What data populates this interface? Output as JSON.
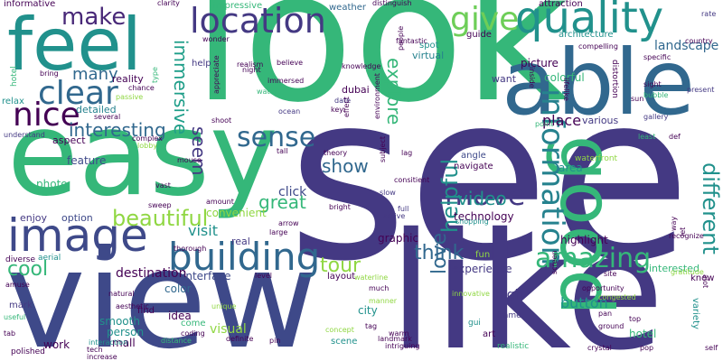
{
  "colors": {
    "background": "#ffffff",
    "palette": [
      "#440154",
      "#443983",
      "#31688e",
      "#21918c",
      "#35b779",
      "#90d743",
      "#fde725",
      "#482878",
      "#26828e",
      "#3e4989",
      "#1f9e89",
      "#6ece58"
    ]
  },
  "words": [
    {
      "text": "see",
      "color": "#443983"
    },
    {
      "text": "look",
      "color": "#35b779"
    },
    {
      "text": "like",
      "color": "#443983"
    },
    {
      "text": "view",
      "color": "#3e4989"
    },
    {
      "text": "easy",
      "color": "#35b779"
    },
    {
      "text": "able",
      "color": "#31688e"
    },
    {
      "text": "feel",
      "color": "#21918c"
    },
    {
      "text": "good",
      "color": "#35b779"
    },
    {
      "text": "quality",
      "color": "#21918c"
    },
    {
      "text": "image",
      "color": "#3e4989"
    },
    {
      "text": "location",
      "color": "#443983"
    },
    {
      "text": "building",
      "color": "#31688e"
    },
    {
      "text": "information",
      "color": "#26828e"
    },
    {
      "text": "nice",
      "color": "#440154"
    },
    {
      "text": "give",
      "color": "#6ece58"
    },
    {
      "text": "clear",
      "color": "#31688e"
    },
    {
      "text": "make",
      "color": "#482878"
    },
    {
      "text": "sense",
      "color": "#31688e"
    },
    {
      "text": "move",
      "color": "#443983"
    },
    {
      "text": "beautiful",
      "color": "#90d743"
    },
    {
      "text": "amazing",
      "color": "#35b779"
    },
    {
      "text": "different",
      "color": "#21918c"
    },
    {
      "text": "show",
      "color": "#31688e"
    },
    {
      "text": "explore",
      "color": "#35b779"
    },
    {
      "text": "immersive",
      "color": "#1f9e89"
    },
    {
      "text": "helpful",
      "color": "#21918c"
    },
    {
      "text": "video",
      "color": "#21918c"
    },
    {
      "text": "interesting",
      "color": "#31688e"
    },
    {
      "text": "great",
      "color": "#35b779"
    },
    {
      "text": "tour",
      "color": "#90d743"
    },
    {
      "text": "cool",
      "color": "#35b779"
    },
    {
      "text": "visit",
      "color": "#21918c"
    },
    {
      "text": "think",
      "color": "#31688e"
    },
    {
      "text": "seem",
      "color": "#443983"
    },
    {
      "text": "love",
      "color": "#31688e"
    },
    {
      "text": "many",
      "color": "#31688e"
    },
    {
      "text": "click",
      "color": "#3e4989"
    },
    {
      "text": "destination",
      "color": "#440154"
    },
    {
      "text": "experience",
      "color": "#443983"
    },
    {
      "text": "button",
      "color": "#21918c"
    },
    {
      "text": "place",
      "color": "#440154"
    },
    {
      "text": "picture",
      "color": "#440154"
    },
    {
      "text": "landscape",
      "color": "#31688e"
    },
    {
      "text": "colorful",
      "color": "#35b779"
    },
    {
      "text": "area",
      "color": "#21918c"
    },
    {
      "text": "highlight",
      "color": "#440154"
    },
    {
      "text": "technology",
      "color": "#440154"
    },
    {
      "text": "interface",
      "color": "#3e4989"
    },
    {
      "text": "smooth",
      "color": "#21918c"
    },
    {
      "text": "person",
      "color": "#21918c"
    },
    {
      "text": "visual",
      "color": "#90d743"
    },
    {
      "text": "idea",
      "color": "#440154"
    },
    {
      "text": "color",
      "color": "#31688e"
    },
    {
      "text": "graphic",
      "color": "#440154"
    },
    {
      "text": "high",
      "color": "#443983"
    },
    {
      "text": "city",
      "color": "#21918c"
    },
    {
      "text": "work",
      "color": "#440154"
    },
    {
      "text": "mall",
      "color": "#440154"
    },
    {
      "text": "interested",
      "color": "#35b779"
    },
    {
      "text": "hotel",
      "color": "#35b779"
    },
    {
      "text": "variety",
      "color": "#21918c"
    },
    {
      "text": "real",
      "color": "#443983"
    },
    {
      "text": "photo",
      "color": "#35b779"
    },
    {
      "text": "feature",
      "color": "#3e4989"
    },
    {
      "text": "enjoy",
      "color": "#443983"
    },
    {
      "text": "option",
      "color": "#3e4989"
    },
    {
      "text": "dubai",
      "color": "#440154"
    },
    {
      "text": "reality",
      "color": "#440154"
    },
    {
      "text": "detailed",
      "color": "#26828e"
    },
    {
      "text": "aspect",
      "color": "#440154"
    },
    {
      "text": "navigate",
      "color": "#440154"
    },
    {
      "text": "angle",
      "color": "#3e4989"
    },
    {
      "text": "convenient",
      "color": "#90d743"
    },
    {
      "text": "various",
      "color": "#443983"
    },
    {
      "text": "guide",
      "color": "#440154"
    },
    {
      "text": "spot",
      "color": "#21918c"
    },
    {
      "text": "virtual",
      "color": "#26828e"
    },
    {
      "text": "impressive",
      "color": "#35b779"
    },
    {
      "text": "want",
      "color": "#443983"
    },
    {
      "text": "help",
      "color": "#443983"
    },
    {
      "text": "architecture",
      "color": "#21918c"
    },
    {
      "text": "attraction",
      "color": "#440154"
    },
    {
      "text": "waterfront",
      "color": "#90d743"
    },
    {
      "text": "informative",
      "color": "#440154"
    },
    {
      "text": "weather",
      "color": "#31688e"
    },
    {
      "text": "mark",
      "color": "#443983"
    },
    {
      "text": "find",
      "color": "#440154"
    },
    {
      "text": "fun",
      "color": "#90d743"
    },
    {
      "text": "art",
      "color": "#440154"
    },
    {
      "text": "scene",
      "color": "#21918c"
    },
    {
      "text": "come",
      "color": "#35b779"
    },
    {
      "text": "layout",
      "color": "#440154"
    },
    {
      "text": "diverse",
      "color": "#440154"
    },
    {
      "text": "aerial",
      "color": "#21918c"
    },
    {
      "text": "polished",
      "color": "#440154"
    },
    {
      "text": "realistic",
      "color": "#35b779"
    },
    {
      "text": "gui",
      "color": "#21918c"
    },
    {
      "text": "know",
      "color": "#440154"
    },
    {
      "text": "frame",
      "color": "#443983"
    },
    {
      "text": "knowledge",
      "color": "#440154"
    },
    {
      "text": "sight",
      "color": "#440154"
    },
    {
      "text": "present",
      "color": "#443983"
    },
    {
      "text": "relax",
      "color": "#21918c"
    },
    {
      "text": "understand",
      "color": "#443983"
    },
    {
      "text": "shoot",
      "color": "#440154"
    },
    {
      "text": "theory",
      "color": "#440154"
    },
    {
      "text": "tall",
      "color": "#440154"
    },
    {
      "text": "mouse",
      "color": "#440154"
    },
    {
      "text": "vast",
      "color": "#440154"
    },
    {
      "text": "amount",
      "color": "#440154"
    },
    {
      "text": "arrow",
      "color": "#440154"
    },
    {
      "text": "bright",
      "color": "#440154"
    },
    {
      "text": "shopping",
      "color": "#21918c"
    },
    {
      "text": "clarity",
      "color": "#440154"
    },
    {
      "text": "distinguish",
      "color": "#440154"
    },
    {
      "text": "inside",
      "color": "#440154"
    },
    {
      "text": "rate",
      "color": "#443983"
    },
    {
      "text": "country",
      "color": "#440154"
    },
    {
      "text": "specific",
      "color": "#440154"
    },
    {
      "text": "compelling",
      "color": "#440154"
    },
    {
      "text": "lifelike",
      "color": "#440154"
    },
    {
      "text": "distortion",
      "color": "#440154"
    },
    {
      "text": "bubble",
      "color": "#35b779"
    },
    {
      "text": "sun",
      "color": "#440154"
    },
    {
      "text": "gallery",
      "color": "#443983"
    },
    {
      "text": "def",
      "color": "#440154"
    },
    {
      "text": "least",
      "color": "#35b779"
    },
    {
      "text": "point",
      "color": "#35b779"
    },
    {
      "text": "lag",
      "color": "#440154"
    },
    {
      "text": "slow",
      "color": "#443983"
    },
    {
      "text": "consitient",
      "color": "#440154"
    },
    {
      "text": "active",
      "color": "#443983"
    },
    {
      "text": "full",
      "color": "#443983"
    },
    {
      "text": "large",
      "color": "#440154"
    },
    {
      "text": "key",
      "color": "#440154"
    },
    {
      "text": "date",
      "color": "#443983"
    },
    {
      "text": "ocean",
      "color": "#443983"
    },
    {
      "text": "water",
      "color": "#35b779"
    },
    {
      "text": "immersed",
      "color": "#440154"
    },
    {
      "text": "realism",
      "color": "#440154"
    },
    {
      "text": "night",
      "color": "#440154"
    },
    {
      "text": "believe",
      "color": "#440154"
    },
    {
      "text": "wonder",
      "color": "#440154"
    },
    {
      "text": "bring",
      "color": "#440154"
    },
    {
      "text": "chance",
      "color": "#440154"
    },
    {
      "text": "passive",
      "color": "#90d743"
    },
    {
      "text": "several",
      "color": "#440154"
    },
    {
      "text": "complex",
      "color": "#440154"
    },
    {
      "text": "lobby",
      "color": "#90d743"
    },
    {
      "text": "sweep",
      "color": "#440154"
    },
    {
      "text": "thorough",
      "color": "#440154"
    },
    {
      "text": "amuse",
      "color": "#440154"
    },
    {
      "text": "useful",
      "color": "#35b779"
    },
    {
      "text": "tab",
      "color": "#440154"
    },
    {
      "text": "interaction",
      "color": "#21918c"
    },
    {
      "text": "tech",
      "color": "#440154"
    },
    {
      "text": "increase",
      "color": "#440154"
    },
    {
      "text": "distance",
      "color": "#35b779"
    },
    {
      "text": "aesthetic",
      "color": "#440154"
    },
    {
      "text": "natural",
      "color": "#440154"
    },
    {
      "text": "unique",
      "color": "#90d743"
    },
    {
      "text": "coding",
      "color": "#440154"
    },
    {
      "text": "definite",
      "color": "#440154"
    },
    {
      "text": "concept",
      "color": "#90d743"
    },
    {
      "text": "pin",
      "color": "#440154"
    },
    {
      "text": "tag",
      "color": "#440154"
    },
    {
      "text": "warm",
      "color": "#440154"
    },
    {
      "text": "landmark",
      "color": "#440154"
    },
    {
      "text": "intriguing",
      "color": "#440154"
    },
    {
      "text": "manner",
      "color": "#90d743"
    },
    {
      "text": "much",
      "color": "#440154"
    },
    {
      "text": "level",
      "color": "#440154"
    },
    {
      "text": "waterline",
      "color": "#90d743"
    },
    {
      "text": "innovative",
      "color": "#90d743"
    },
    {
      "text": "screen",
      "color": "#440154"
    },
    {
      "text": "site",
      "color": "#440154"
    },
    {
      "text": "opportunity",
      "color": "#440154"
    },
    {
      "text": "congested",
      "color": "#90d743"
    },
    {
      "text": "pan",
      "color": "#440154"
    },
    {
      "text": "ground",
      "color": "#440154"
    },
    {
      "text": "crystal",
      "color": "#440154"
    },
    {
      "text": "pop",
      "color": "#440154"
    },
    {
      "text": "self",
      "color": "#440154"
    },
    {
      "text": "alot",
      "color": "#440154"
    },
    {
      "text": "gratitude",
      "color": "#90d743"
    },
    {
      "text": "recognize",
      "color": "#440154"
    },
    {
      "text": "top",
      "color": "#440154"
    },
    {
      "text": "hotel",
      "color": "#35b779"
    },
    {
      "text": "type",
      "color": "#35b779"
    },
    {
      "text": "appreciate",
      "color": "#440154"
    },
    {
      "text": "effect",
      "color": "#440154"
    },
    {
      "text": "environment",
      "color": "#440154"
    },
    {
      "text": "subject",
      "color": "#440154"
    },
    {
      "text": "fantastic",
      "color": "#440154"
    },
    {
      "text": "people",
      "color": "#440154"
    },
    {
      "text": "way",
      "color": "#440154"
    },
    {
      "text": "let",
      "color": "#440154"
    },
    {
      "text": "shot",
      "color": "#440154"
    }
  ]
}
